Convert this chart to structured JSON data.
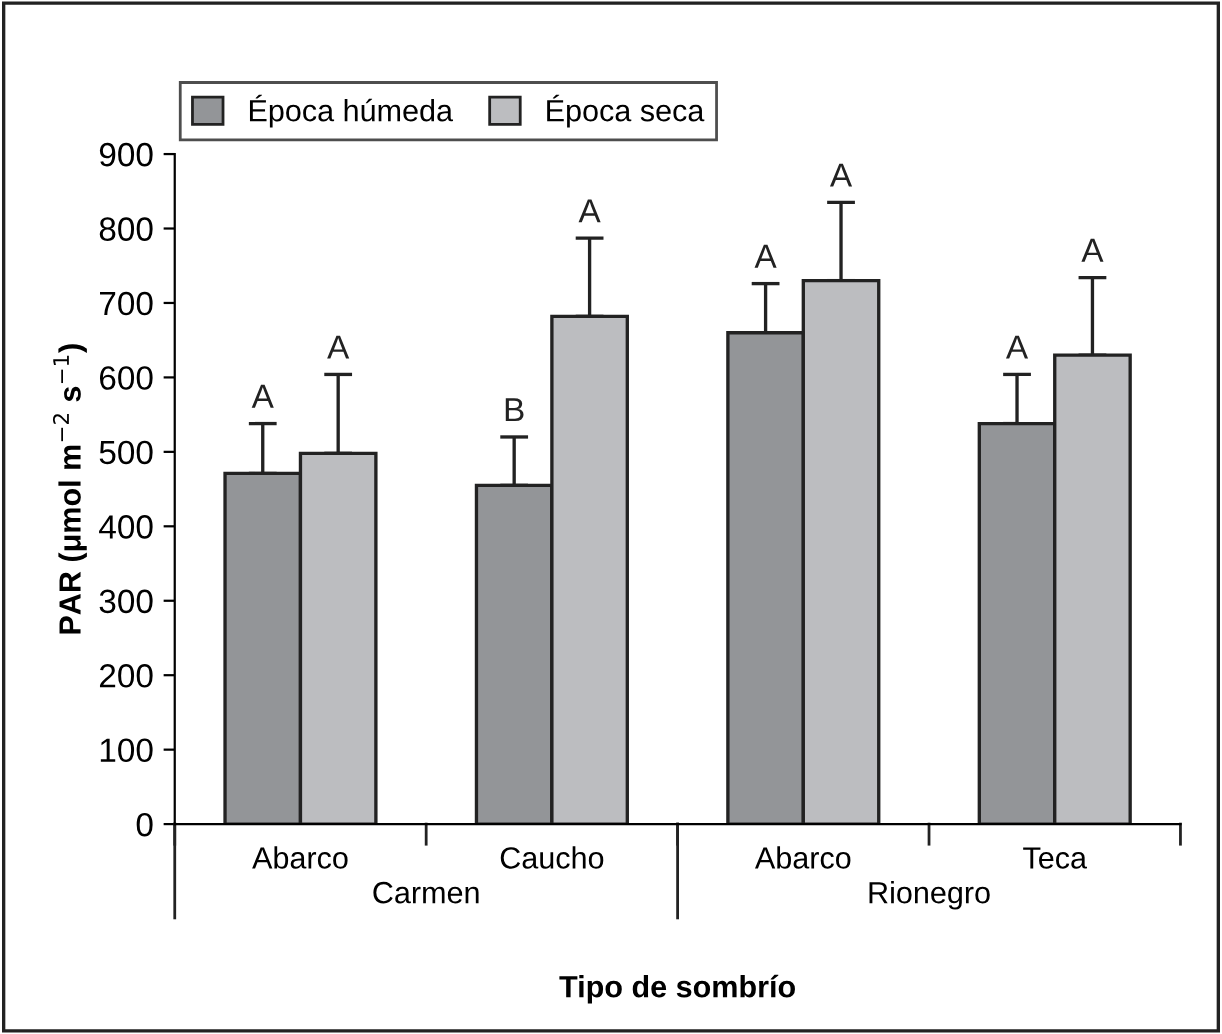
{
  "chart_data": {
    "type": "bar",
    "categories": [
      "Abarco",
      "Caucho",
      "Abarco",
      "Teca"
    ],
    "series": [
      {
        "name": "Época húmeda",
        "color": "#939598",
        "values": [
          471,
          455,
          660,
          538
        ],
        "errors": [
          [
            471,
            538
          ],
          [
            455,
            520
          ],
          [
            660,
            726
          ],
          [
            538,
            604
          ]
        ],
        "value_labels": [
          "A",
          "B",
          "A",
          "A"
        ]
      },
      {
        "name": "Época seca",
        "color": "#bcbdc0",
        "values": [
          498,
          682,
          730,
          630
        ],
        "errors": [
          [
            498,
            604
          ],
          [
            682,
            787
          ],
          [
            730,
            835
          ],
          [
            630,
            734
          ]
        ],
        "value_labels": [
          "A",
          "A",
          "A",
          "A"
        ]
      }
    ],
    "xlabel": "Tipo de sombrío",
    "ylabel": "PAR (μmol m$^{−2}$ s$^{−1}$)",
    "annotations": [
      "Carmen",
      "Rionegro"
    ],
    "ylim": [
      0,
      900
    ],
    "yticks": [
      0,
      100,
      200,
      300,
      400,
      500,
      600,
      700,
      800,
      900
    ],
    "grid": false,
    "legend": "top left"
  }
}
